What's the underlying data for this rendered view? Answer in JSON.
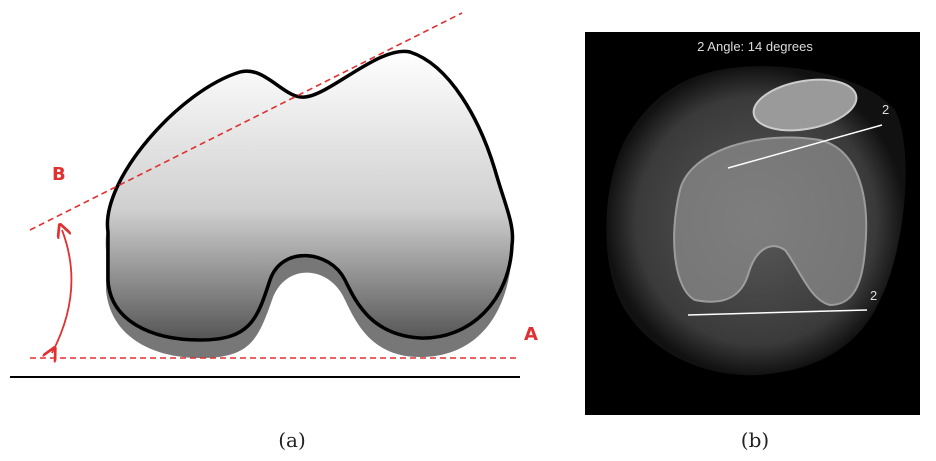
{
  "panels": [
    {
      "caption": "(a)",
      "labels": [
        "B",
        "A"
      ]
    },
    {
      "caption": "(b)",
      "overlay_title": "2 Angle: 14 degrees",
      "line_labels": [
        "2",
        "2"
      ]
    }
  ]
}
